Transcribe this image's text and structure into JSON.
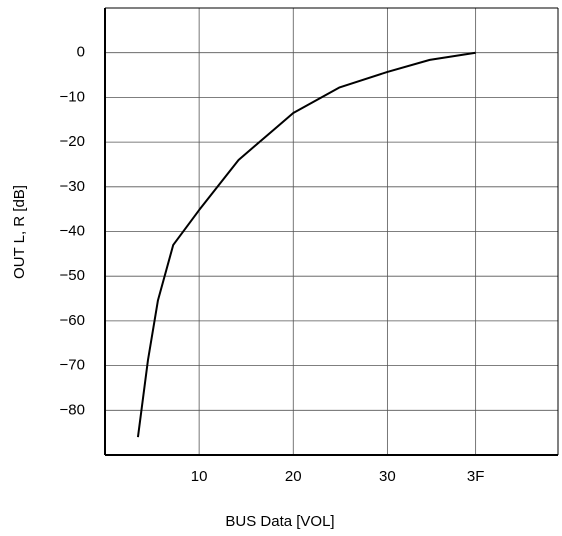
{
  "chart_data": {
    "type": "line",
    "x_label": "BUS Data [VOL]",
    "y_label": "OUT L, R [dB]",
    "x": [
      5.6,
      7.3,
      9.0,
      11.6,
      16,
      22.7,
      32,
      39.8,
      48,
      55.2,
      63
    ],
    "series": [
      {
        "name": "OUT L, R",
        "color": "#000000",
        "values": [
          -86,
          -68.8,
          -55.4,
          -43,
          -35.2,
          -24,
          -13.5,
          -7.8,
          -4.3,
          -1.6,
          0
        ]
      }
    ],
    "xlim": [
      0,
      77
    ],
    "ylim": [
      -90,
      10
    ],
    "xticks": [
      {
        "value": 16,
        "label": "10"
      },
      {
        "value": 32,
        "label": "20"
      },
      {
        "value": 48,
        "label": "30"
      },
      {
        "value": 63,
        "label": "3F"
      }
    ],
    "yticks": [
      0,
      {
        "value": -10,
        "label": "−10"
      },
      {
        "value": -20,
        "label": "−20"
      },
      {
        "value": -30,
        "label": "−30"
      },
      {
        "value": -40,
        "label": "−40"
      },
      {
        "value": -50,
        "label": "−50"
      },
      {
        "value": -60,
        "label": "−60"
      },
      {
        "value": -70,
        "label": "−70"
      },
      {
        "value": -80,
        "label": "−80"
      }
    ],
    "grid": true
  }
}
